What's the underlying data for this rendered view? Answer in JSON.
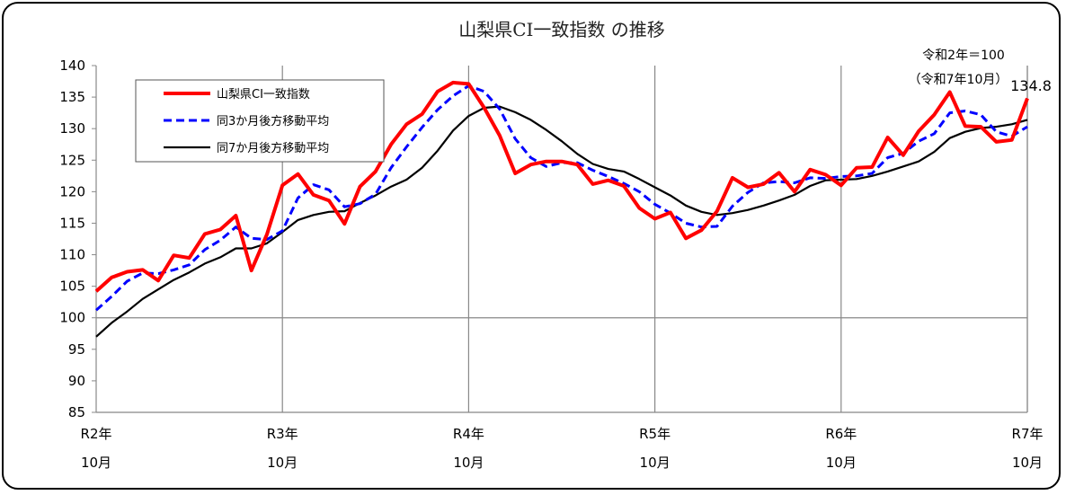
{
  "chart_data": {
    "type": "line",
    "title": "山梨県CI一致指数 の推移",
    "note_line1": "令和2年＝100",
    "note_line2": "（令和7年10月）",
    "last_label": "134.8",
    "ylim": [
      85,
      140
    ],
    "yticks": [
      85,
      90,
      95,
      100,
      105,
      110,
      115,
      120,
      125,
      130,
      135,
      140
    ],
    "x_tick_labels": [
      {
        "line1": "R2年",
        "line2": "10月"
      },
      {
        "line1": "R3年",
        "line2": "10月"
      },
      {
        "line1": "R4年",
        "line2": "10月"
      },
      {
        "line1": "R5年",
        "line2": "10月"
      },
      {
        "line1": "R6年",
        "line2": "10月"
      },
      {
        "line1": "R7年",
        "line2": "10月"
      }
    ],
    "grid": "vertical-year-lines",
    "legend_position": "top-left",
    "series": [
      {
        "name": "山梨県CI一致指数",
        "color": "#ff0000",
        "style": "solid-thick",
        "values": [
          104.2,
          106.4,
          107.3,
          107.6,
          105.9,
          109.9,
          109.5,
          113.3,
          114.0,
          116.2,
          107.5,
          113.2,
          121.0,
          122.8,
          119.5,
          118.6,
          114.9,
          120.8,
          123.2,
          127.5,
          130.7,
          132.3,
          135.9,
          137.3,
          137.1,
          133.3,
          128.9,
          122.9,
          124.3,
          124.8,
          124.8,
          124.3,
          121.2,
          121.8,
          120.9,
          117.4,
          115.7,
          116.7,
          112.6,
          113.9,
          116.9,
          122.2,
          120.7,
          121.2,
          123.0,
          120.0,
          123.5,
          122.7,
          121.0,
          123.8,
          123.9,
          128.6,
          125.8,
          129.6,
          132.2,
          135.8,
          130.4,
          130.3,
          127.9,
          128.2,
          134.8
        ]
      },
      {
        "name": "同3か月後方移動平均",
        "color": "#0000ff",
        "style": "dashed",
        "values": [
          101.2,
          103.4,
          105.8,
          107.1,
          107.0,
          107.6,
          108.4,
          110.8,
          112.3,
          114.4,
          112.6,
          112.4,
          113.8,
          119.0,
          121.1,
          120.3,
          117.6,
          118.1,
          119.6,
          123.8,
          127.1,
          130.2,
          133.0,
          135.2,
          136.8,
          135.9,
          133.1,
          128.4,
          125.4,
          124.0,
          124.6,
          124.6,
          123.4,
          122.4,
          121.3,
          120.0,
          118.0,
          116.6,
          115.0,
          114.4,
          114.5,
          117.7,
          119.9,
          121.4,
          121.6,
          121.4,
          122.2,
          122.1,
          122.4,
          122.5,
          122.9,
          125.4,
          126.1,
          128.0,
          129.2,
          132.5,
          132.8,
          132.2,
          129.5,
          128.8,
          130.3
        ]
      },
      {
        "name": "同7か月後方移動平均",
        "color": "#000000",
        "style": "solid",
        "values": [
          97.0,
          99.2,
          101.0,
          103.0,
          104.5,
          106.0,
          107.2,
          108.6,
          109.6,
          111.0,
          111.0,
          111.8,
          113.6,
          115.5,
          116.3,
          116.8,
          116.9,
          118.2,
          119.4,
          120.8,
          121.9,
          123.8,
          126.5,
          129.7,
          132.0,
          133.3,
          133.5,
          132.6,
          131.4,
          129.8,
          128.0,
          126.0,
          124.4,
          123.6,
          123.2,
          122.0,
          120.7,
          119.4,
          117.8,
          116.8,
          116.3,
          116.6,
          117.1,
          117.8,
          118.6,
          119.5,
          120.9,
          121.8,
          121.9,
          122.0,
          122.5,
          123.2,
          124.0,
          124.8,
          126.3,
          128.5,
          129.5,
          130.1,
          130.3,
          130.7,
          131.4
        ]
      }
    ]
  }
}
